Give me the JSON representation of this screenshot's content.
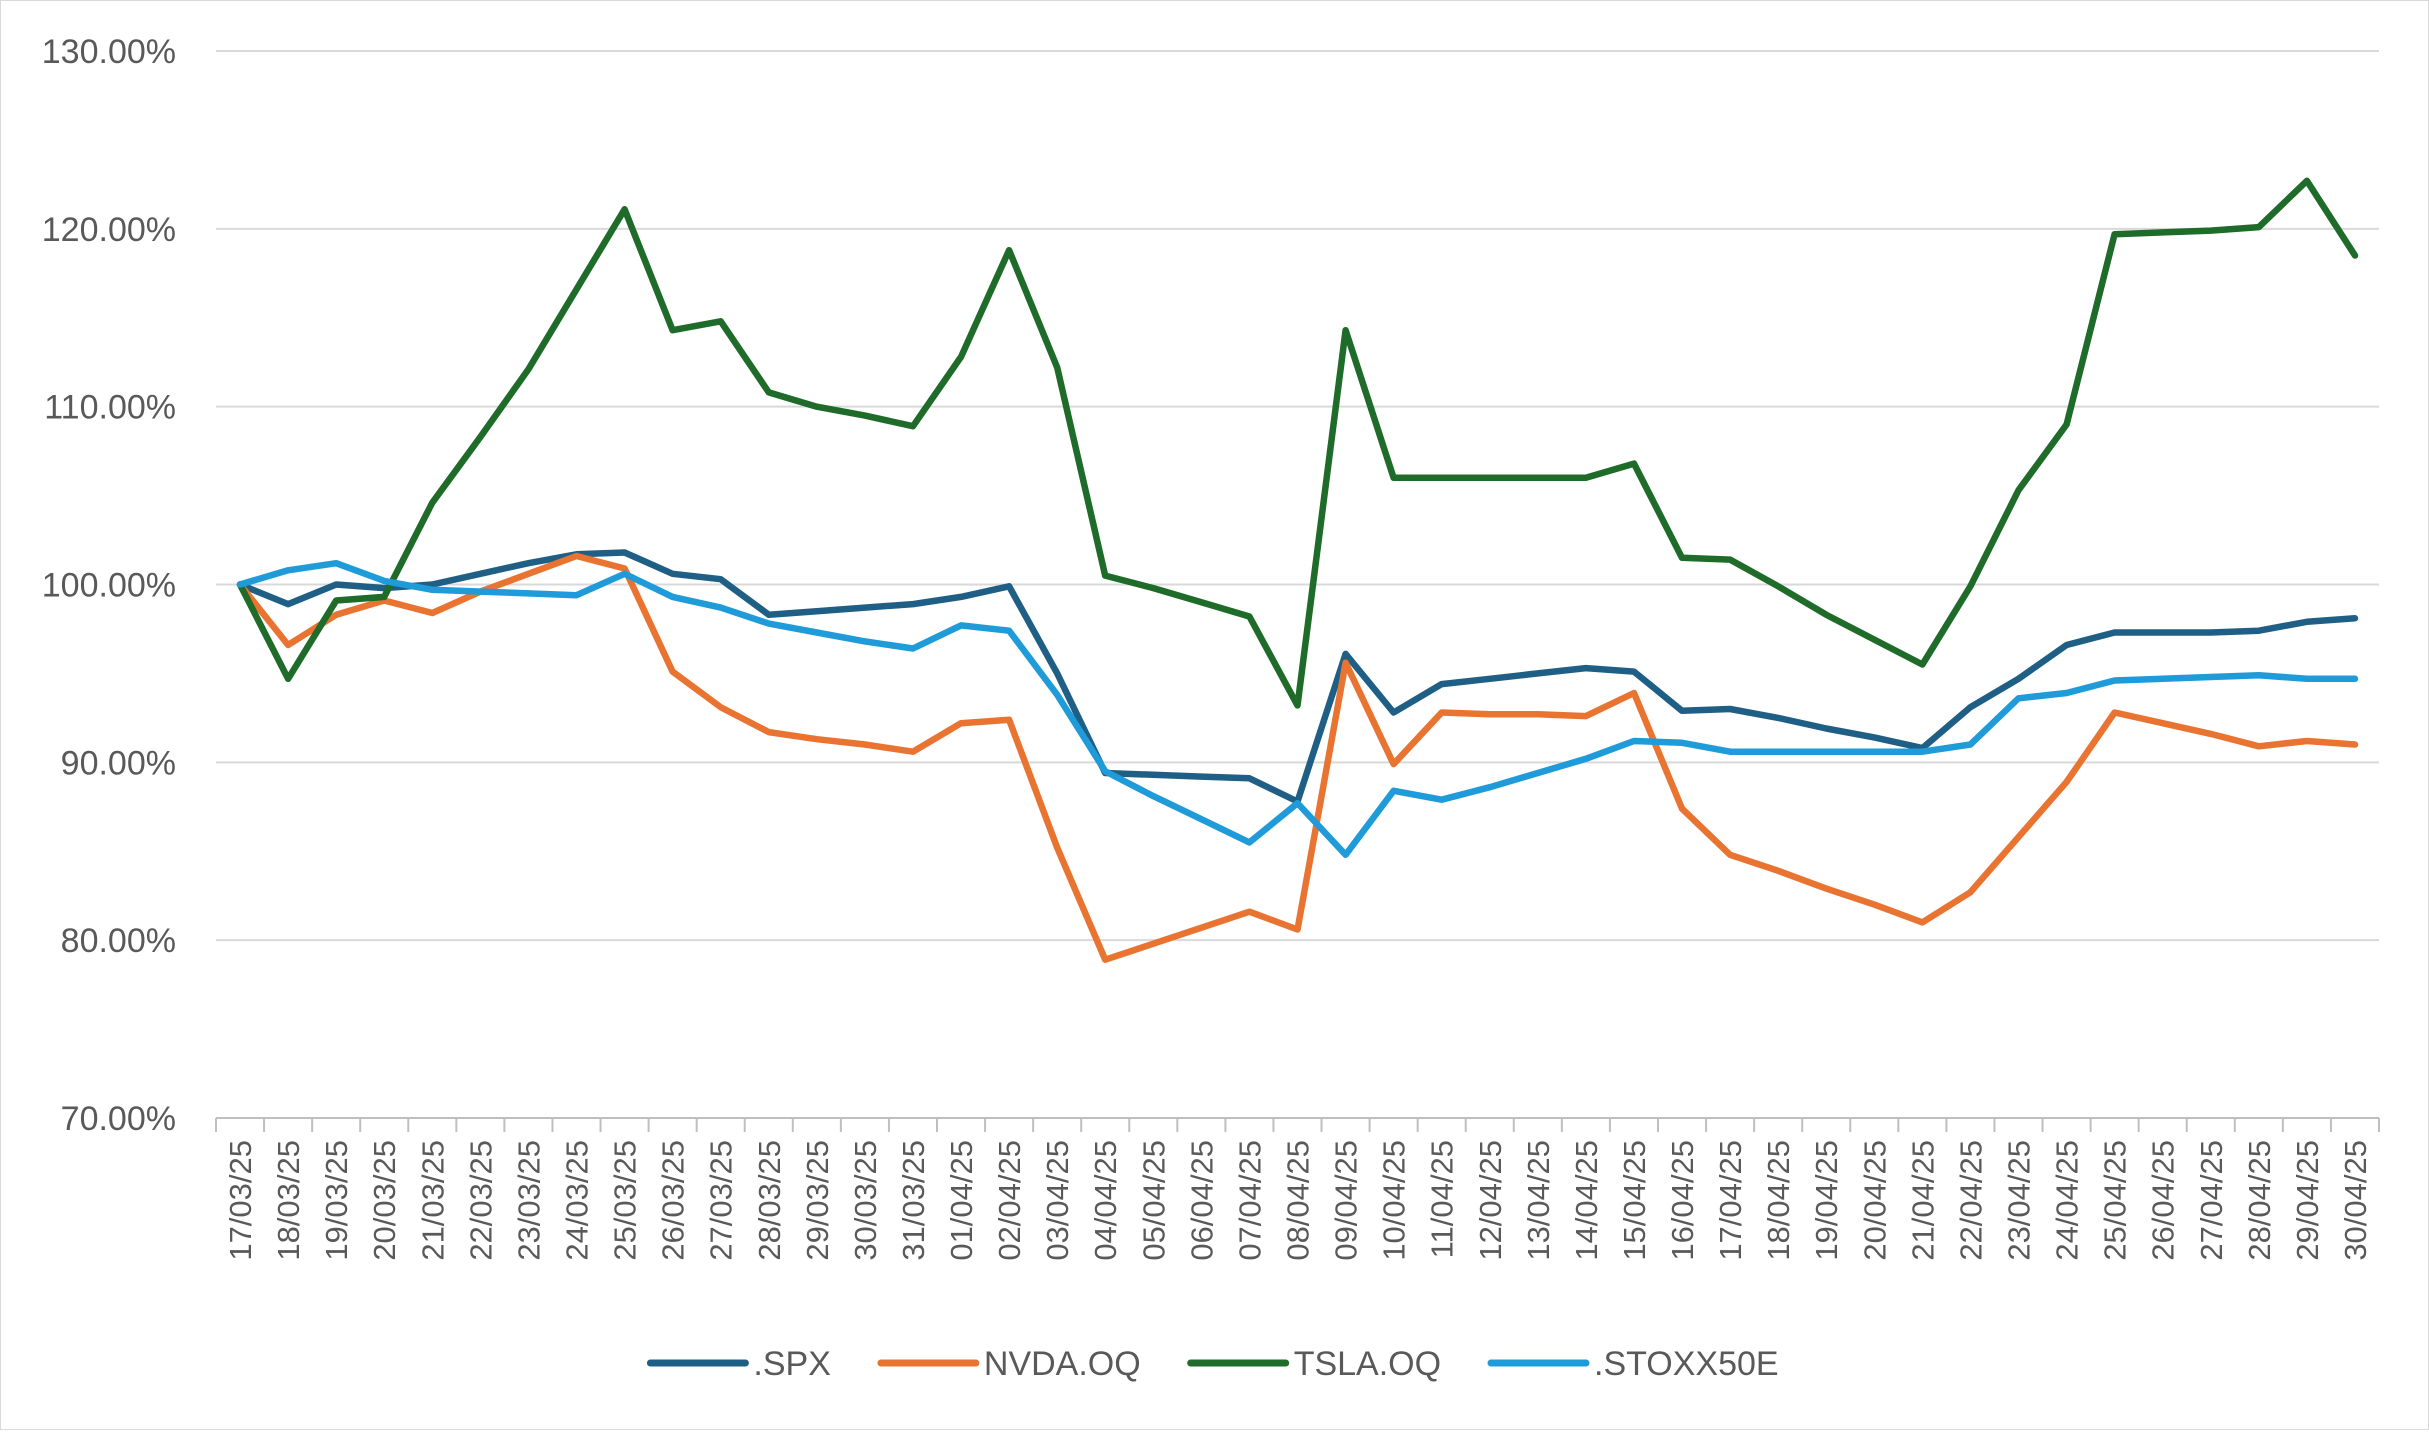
{
  "chart_data": {
    "type": "line",
    "title": "",
    "xlabel": "",
    "ylabel": "",
    "ylim": [
      70,
      130
    ],
    "yticks": [
      "70.00%",
      "80.00%",
      "90.00%",
      "100.00%",
      "110.00%",
      "120.00%",
      "130.00%"
    ],
    "grid": "horizontal",
    "legend_position": "bottom",
    "categories": [
      "17/03/25",
      "18/03/25",
      "19/03/25",
      "20/03/25",
      "21/03/25",
      "22/03/25",
      "23/03/25",
      "24/03/25",
      "25/03/25",
      "26/03/25",
      "27/03/25",
      "28/03/25",
      "29/03/25",
      "30/03/25",
      "31/03/25",
      "01/04/25",
      "02/04/25",
      "03/04/25",
      "04/04/25",
      "05/04/25",
      "06/04/25",
      "07/04/25",
      "08/04/25",
      "09/04/25",
      "10/04/25",
      "11/04/25",
      "12/04/25",
      "13/04/25",
      "14/04/25",
      "15/04/25",
      "16/04/25",
      "17/04/25",
      "18/04/25",
      "19/04/25",
      "20/04/25",
      "21/04/25",
      "22/04/25",
      "23/04/25",
      "24/04/25",
      "25/04/25",
      "26/04/25",
      "27/04/25",
      "28/04/25",
      "29/04/25",
      "30/04/25"
    ],
    "series": [
      {
        "name": ".SPX",
        "color": "#1f5f85",
        "values": [
          100.0,
          98.9,
          100.0,
          99.8,
          100.0,
          100.6,
          101.2,
          101.7,
          101.8,
          100.6,
          100.3,
          98.3,
          98.5,
          98.7,
          98.9,
          99.3,
          99.9,
          95.0,
          89.4,
          89.3,
          89.2,
          89.1,
          87.8,
          96.1,
          92.8,
          94.4,
          94.7,
          95.0,
          95.3,
          95.1,
          92.9,
          93.0,
          92.5,
          91.9,
          91.4,
          90.8,
          93.1,
          94.7,
          96.6,
          97.3,
          97.3,
          97.3,
          97.4,
          97.9,
          98.1
        ]
      },
      {
        "name": "NVDA.OQ",
        "color": "#e97431",
        "values": [
          100.0,
          96.6,
          98.3,
          99.1,
          98.4,
          99.6,
          100.6,
          101.6,
          100.9,
          95.1,
          93.1,
          91.7,
          91.3,
          91.0,
          90.6,
          92.2,
          92.4,
          85.2,
          78.9,
          79.8,
          80.7,
          81.6,
          80.6,
          95.6,
          89.9,
          92.8,
          92.7,
          92.7,
          92.6,
          93.9,
          87.4,
          84.8,
          83.9,
          82.9,
          82.0,
          81.0,
          82.7,
          85.8,
          88.9,
          92.8,
          92.2,
          91.6,
          90.9,
          91.2,
          91.0
        ]
      },
      {
        "name": "TSLA.OQ",
        "color": "#1e6b2a",
        "values": [
          100.0,
          94.7,
          99.1,
          99.3,
          104.6,
          108.3,
          112.1,
          116.6,
          121.1,
          114.3,
          114.8,
          110.8,
          110.0,
          109.5,
          108.9,
          112.8,
          118.8,
          112.2,
          100.5,
          99.8,
          99.0,
          98.2,
          93.2,
          114.3,
          106.0,
          106.0,
          106.0,
          106.0,
          106.0,
          106.8,
          101.5,
          101.4,
          99.9,
          98.3,
          96.9,
          95.5,
          99.9,
          105.3,
          109.0,
          119.7,
          119.8,
          119.9,
          120.1,
          122.7,
          118.5
        ]
      },
      {
        "name": ".STOXX50E",
        "color": "#1e9bd8",
        "values": [
          100.0,
          100.8,
          101.2,
          100.2,
          99.7,
          99.6,
          99.5,
          99.4,
          100.6,
          99.3,
          98.7,
          97.8,
          97.3,
          96.8,
          96.4,
          97.7,
          97.4,
          93.8,
          89.5,
          88.1,
          86.8,
          85.5,
          87.7,
          84.8,
          88.4,
          87.9,
          88.6,
          89.4,
          90.2,
          91.2,
          91.1,
          90.6,
          90.6,
          90.6,
          90.6,
          90.6,
          91.0,
          93.6,
          93.9,
          94.6,
          94.7,
          94.8,
          94.9,
          94.7,
          94.7
        ]
      }
    ]
  }
}
